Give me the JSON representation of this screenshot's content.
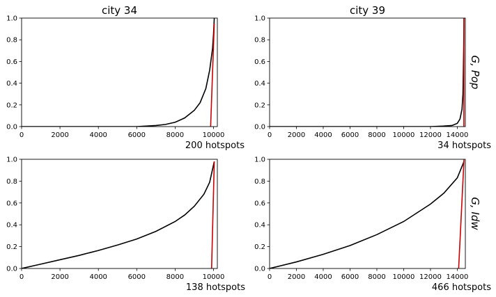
{
  "row_labels": [
    "G, Pop",
    "G, Idw"
  ],
  "chart_data": [
    {
      "type": "line",
      "title": "city 34",
      "annotation": "200 hotspots",
      "xlim": [
        0,
        10200
      ],
      "ylim": [
        0,
        1
      ],
      "xticks": [
        0,
        2000,
        4000,
        6000,
        8000,
        10000
      ],
      "yticks": [
        0.0,
        0.2,
        0.4,
        0.6,
        0.8,
        1.0
      ],
      "grid": false,
      "series": [
        {
          "color": "#000000",
          "x": [
            0,
            6000,
            7000,
            7500,
            8000,
            8500,
            9000,
            9300,
            9600,
            9800,
            9950,
            10000,
            10040
          ],
          "y": [
            0.0,
            0.0,
            0.01,
            0.02,
            0.04,
            0.08,
            0.15,
            0.22,
            0.35,
            0.52,
            0.72,
            0.85,
            1.0
          ]
        },
        {
          "color": "#cc0000",
          "x": [
            9850,
            10040
          ],
          "y": [
            0.0,
            0.95
          ]
        }
      ]
    },
    {
      "type": "line",
      "title": "city 39",
      "annotation": "34 hotspots",
      "xlim": [
        0,
        14600
      ],
      "ylim": [
        0,
        1
      ],
      "xticks": [
        0,
        2000,
        4000,
        6000,
        8000,
        10000,
        12000,
        14000
      ],
      "yticks": [
        0.0,
        0.2,
        0.4,
        0.6,
        0.8,
        1.0
      ],
      "grid": false,
      "series": [
        {
          "color": "#000000",
          "x": [
            0,
            12000,
            13000,
            13600,
            14000,
            14200,
            14350,
            14420,
            14450,
            14480,
            14500
          ],
          "y": [
            0.0,
            0.0,
            0.005,
            0.01,
            0.03,
            0.07,
            0.16,
            0.3,
            0.5,
            0.75,
            1.0
          ]
        },
        {
          "color": "#cc0000",
          "x": [
            14490,
            14500
          ],
          "y": [
            0.0,
            1.0
          ]
        }
      ]
    },
    {
      "type": "line",
      "title": "",
      "annotation": "138 hotspots",
      "xlim": [
        0,
        10200
      ],
      "ylim": [
        0,
        1
      ],
      "xticks": [
        0,
        2000,
        4000,
        6000,
        8000,
        10000
      ],
      "yticks": [
        0.0,
        0.2,
        0.4,
        0.6,
        0.8,
        1.0
      ],
      "grid": false,
      "series": [
        {
          "color": "#000000",
          "x": [
            0,
            1000,
            2000,
            3000,
            4000,
            5000,
            6000,
            7000,
            8000,
            8500,
            9000,
            9500,
            9800,
            10040
          ],
          "y": [
            0.0,
            0.04,
            0.08,
            0.12,
            0.165,
            0.215,
            0.27,
            0.34,
            0.43,
            0.49,
            0.57,
            0.68,
            0.79,
            0.98
          ]
        },
        {
          "color": "#cc0000",
          "x": [
            9900,
            10040
          ],
          "y": [
            0.0,
            0.98
          ]
        }
      ]
    },
    {
      "type": "line",
      "title": "",
      "annotation": "466 hotspots",
      "xlim": [
        0,
        14600
      ],
      "ylim": [
        0,
        1
      ],
      "xticks": [
        0,
        2000,
        4000,
        6000,
        8000,
        10000,
        12000,
        14000
      ],
      "yticks": [
        0.0,
        0.2,
        0.4,
        0.6,
        0.8,
        1.0
      ],
      "grid": false,
      "series": [
        {
          "color": "#000000",
          "x": [
            0,
            2000,
            4000,
            6000,
            8000,
            10000,
            12000,
            13000,
            14000,
            14500
          ],
          "y": [
            0.0,
            0.06,
            0.13,
            0.21,
            0.31,
            0.43,
            0.59,
            0.69,
            0.83,
            0.98
          ]
        },
        {
          "color": "#cc0000",
          "x": [
            14100,
            14500
          ],
          "y": [
            0.0,
            1.0
          ]
        }
      ]
    }
  ]
}
